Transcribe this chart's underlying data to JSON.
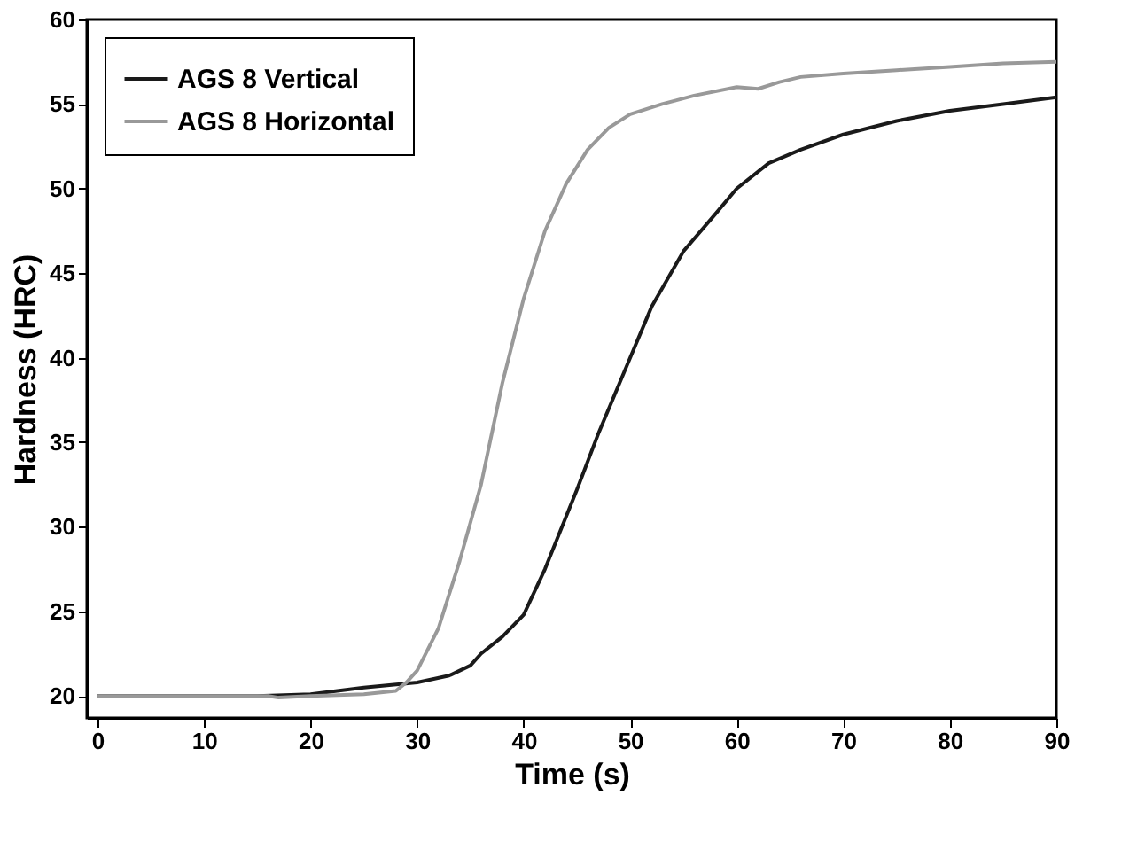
{
  "chart_data": {
    "type": "line",
    "xlabel": "Time (s)",
    "ylabel": "Hardness (HRC)",
    "xlim": [
      -1,
      90
    ],
    "ylim": [
      18.7,
      60
    ],
    "xticks": [
      0,
      10,
      20,
      30,
      40,
      50,
      60,
      70,
      80,
      90
    ],
    "yticks": [
      20,
      25,
      30,
      35,
      40,
      45,
      50,
      55,
      60
    ],
    "grid": false,
    "legend": "top left",
    "line_style": "solid",
    "marker": "none",
    "series": [
      {
        "name": "AGS 8 Vertical",
        "color": "#1a1a1a",
        "x": [
          0,
          15,
          20,
          25,
          30,
          33,
          35,
          36,
          38,
          40,
          42,
          45,
          47,
          50,
          52,
          55,
          58,
          60,
          63,
          66,
          70,
          75,
          80,
          85,
          90
        ],
        "values": [
          20,
          20,
          20.1,
          20.5,
          20.8,
          21.2,
          21.8,
          22.5,
          23.5,
          24.8,
          27.5,
          32.2,
          35.5,
          40,
          43,
          46.3,
          48.5,
          50,
          51.5,
          52.3,
          53.2,
          54,
          54.6,
          55,
          55.4
        ]
      },
      {
        "name": "AGS 8 Horizontal",
        "color": "#999999",
        "x": [
          0,
          16,
          17,
          20,
          25,
          28,
          29,
          30,
          32,
          34,
          36,
          38,
          40,
          42,
          44,
          46,
          48,
          50,
          53,
          56,
          60,
          62,
          64,
          66,
          70,
          75,
          80,
          85,
          90
        ],
        "values": [
          20,
          20,
          19.9,
          20,
          20.1,
          20.3,
          20.8,
          21.5,
          24,
          28,
          32.5,
          38.5,
          43.5,
          47.5,
          50.3,
          52.3,
          53.6,
          54.4,
          55,
          55.5,
          56,
          55.9,
          56.3,
          56.6,
          56.8,
          57,
          57.2,
          57.4,
          57.5
        ]
      }
    ]
  }
}
